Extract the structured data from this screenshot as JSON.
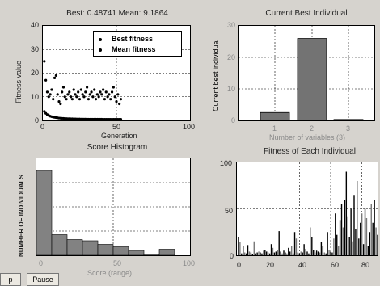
{
  "fitness_plot": {
    "title": "Best: 0.48741 Mean: 9.1864",
    "ylabel": "Fitness value",
    "xlabel": "Generation",
    "yticks": [
      "0",
      "10",
      "20",
      "30",
      "40"
    ],
    "xticks": [
      "0",
      "50",
      "100"
    ],
    "legend": {
      "best": "Best fitness",
      "mean": "Mean fitness"
    }
  },
  "best_individual_plot": {
    "title": "Current Best Individual",
    "ylabel": "Current best individual",
    "xlabel": "Number of variables (3)",
    "yticks": [
      "0",
      "10",
      "20",
      "30"
    ],
    "xticks": [
      "1",
      "2",
      "3"
    ]
  },
  "histogram_plot": {
    "title": "Score Histogram",
    "ylabel": "NUMBER OF INDIVIDUALS",
    "xlabel": "Score (range)",
    "xticks": [
      "0",
      "50",
      "100"
    ]
  },
  "each_individual_plot": {
    "title": "Fitness of Each Individual",
    "yticks": [
      "0",
      "50",
      "100"
    ],
    "xticks": [
      "0",
      "20",
      "40",
      "60",
      "80"
    ]
  },
  "buttons": {
    "stop": "p",
    "pause": "Pause"
  },
  "chart_data": [
    {
      "type": "scatter",
      "title": "Best: 0.48741 Mean: 9.1864",
      "xlabel": "Generation",
      "ylabel": "Fitness value",
      "xlim": [
        0,
        100
      ],
      "ylim": [
        0,
        40
      ],
      "legend": "top-right",
      "series": [
        {
          "name": "Best fitness",
          "x": [
            1,
            2,
            3,
            4,
            5,
            6,
            7,
            8,
            9,
            10,
            11,
            12,
            13,
            14,
            15,
            16,
            17,
            18,
            19,
            20,
            21,
            22,
            23,
            24,
            25,
            26,
            27,
            28,
            29,
            30,
            31,
            32,
            33,
            34,
            35,
            36,
            37,
            38,
            39,
            40,
            41,
            42,
            43,
            44,
            45,
            46,
            47,
            48,
            49,
            50,
            51,
            52,
            53
          ],
          "values": [
            3.8,
            3.0,
            2.5,
            2.1,
            1.8,
            1.6,
            1.4,
            1.3,
            1.2,
            1.1,
            1.0,
            0.95,
            0.9,
            0.85,
            0.8,
            0.78,
            0.75,
            0.72,
            0.7,
            0.68,
            0.66,
            0.64,
            0.62,
            0.6,
            0.59,
            0.58,
            0.57,
            0.56,
            0.55,
            0.55,
            0.54,
            0.54,
            0.53,
            0.53,
            0.52,
            0.52,
            0.52,
            0.51,
            0.51,
            0.51,
            0.5,
            0.5,
            0.5,
            0.5,
            0.49,
            0.49,
            0.49,
            0.49,
            0.49,
            0.49,
            0.49,
            0.49,
            0.49
          ]
        },
        {
          "name": "Mean fitness",
          "x": [
            1,
            2,
            3,
            4,
            5,
            6,
            7,
            8,
            9,
            10,
            11,
            12,
            13,
            14,
            15,
            16,
            17,
            18,
            19,
            20,
            21,
            22,
            23,
            24,
            25,
            26,
            27,
            28,
            29,
            30,
            31,
            32,
            33,
            34,
            35,
            36,
            37,
            38,
            39,
            40,
            41,
            42,
            43,
            44,
            45,
            46,
            47,
            48,
            49,
            50,
            51,
            52,
            53
          ],
          "values": [
            25,
            17,
            12,
            10,
            11,
            13,
            9,
            18,
            19,
            11,
            8,
            7,
            12,
            14,
            10,
            9,
            11,
            12,
            10,
            9,
            13,
            11,
            10,
            12,
            9,
            13,
            11,
            10,
            12,
            14,
            9,
            11,
            12,
            10,
            13,
            9,
            11,
            10,
            12,
            11,
            13,
            9,
            12,
            10,
            11,
            9,
            12,
            14,
            10,
            8,
            11,
            7,
            9
          ]
        }
      ]
    },
    {
      "type": "bar",
      "title": "Current Best Individual",
      "xlabel": "Number of variables (3)",
      "ylabel": "Current best individual",
      "categories": [
        "1",
        "2",
        "3"
      ],
      "values": [
        2.5,
        26,
        0.3
      ],
      "ylim": [
        0,
        30
      ]
    },
    {
      "type": "bar",
      "title": "Score Histogram",
      "xlabel": "Score (range)",
      "ylabel": "NUMBER OF INDIVIDUALS",
      "xlim": [
        0,
        100
      ],
      "bin_edges": [
        0,
        10,
        20,
        30,
        40,
        50,
        60,
        70,
        80,
        90,
        100
      ],
      "values": [
        70,
        17,
        13,
        12,
        9,
        7,
        4,
        1,
        5,
        0
      ]
    },
    {
      "type": "bar",
      "title": "Fitness of Each Individual",
      "xlim": [
        0,
        90
      ],
      "ylim": [
        0,
        100
      ],
      "x": [
        1,
        2,
        3,
        4,
        5,
        6,
        7,
        8,
        9,
        10,
        11,
        12,
        13,
        14,
        15,
        16,
        17,
        18,
        19,
        20,
        21,
        22,
        23,
        24,
        25,
        26,
        27,
        28,
        29,
        30,
        31,
        32,
        33,
        34,
        35,
        36,
        37,
        38,
        39,
        40,
        41,
        42,
        43,
        44,
        45,
        46,
        47,
        48,
        49,
        50,
        51,
        52,
        53,
        54,
        55,
        56,
        57,
        58,
        59,
        60,
        61,
        62,
        63,
        64,
        65,
        66,
        67,
        68,
        69,
        70,
        71,
        72,
        73,
        74,
        75,
        76,
        77,
        78,
        79,
        80,
        81,
        82,
        83,
        84,
        85,
        86,
        87,
        88,
        89,
        90
      ],
      "values": [
        20,
        14,
        2,
        10,
        3,
        2,
        11,
        4,
        3,
        1,
        15,
        2,
        3,
        4,
        3,
        2,
        5,
        6,
        4,
        3,
        2,
        12,
        8,
        3,
        4,
        6,
        26,
        4,
        2,
        5,
        3,
        2,
        8,
        4,
        10,
        2,
        25,
        18,
        3,
        2,
        4,
        3,
        12,
        7,
        4,
        2,
        30,
        20,
        6,
        3,
        5,
        4,
        3,
        14,
        10,
        3,
        2,
        25,
        6,
        4,
        3,
        18,
        45,
        22,
        10,
        38,
        55,
        30,
        60,
        90,
        42,
        20,
        50,
        15,
        65,
        28,
        80,
        18,
        35,
        45,
        12,
        50,
        40,
        10,
        25,
        55,
        35,
        60,
        30,
        22
      ]
    }
  ]
}
